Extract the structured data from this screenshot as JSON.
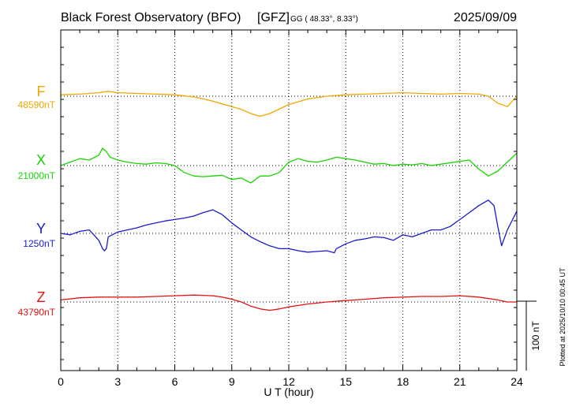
{
  "chart_data": {
    "type": "line",
    "title_station": "Black Forest Observatory (BFO)",
    "title_institute": "[GFZ]",
    "title_coords": "GG ( 48.33°,   8.33°)",
    "date": "2025/09/09",
    "xlabel": "U T (hour)",
    "xlim": [
      0,
      24
    ],
    "x_ticks": [
      "0",
      "3",
      "6",
      "9",
      "12",
      "15",
      "18",
      "21",
      "24"
    ],
    "grid": true,
    "scale_bar_label": "100 nT",
    "scale_bar_nT": 100,
    "plotted_note": "Plotted at 2025/10/10 00:45 UT",
    "series": [
      {
        "name": "F",
        "baseline_label": "48590nT",
        "baseline": 48590,
        "color": "#f0a800",
        "x": [
          0,
          1,
          2,
          2.5,
          3,
          4,
          5,
          6,
          7,
          8,
          9,
          9.5,
          10,
          10.5,
          11,
          12,
          13,
          14,
          15,
          16,
          17,
          18,
          19,
          20,
          21,
          22,
          22.5,
          23,
          23.5,
          24
        ],
        "y": [
          48592,
          48593,
          48595,
          48597,
          48595,
          48594,
          48593,
          48592,
          48589,
          48583,
          48575,
          48571,
          48565,
          48561,
          48565,
          48578,
          48586,
          48590,
          48592,
          48593,
          48594,
          48595,
          48594,
          48593,
          48594,
          48593,
          48590,
          48580,
          48575,
          48590
        ]
      },
      {
        "name": "X",
        "baseline_label": "21000nT",
        "baseline": 21000,
        "color": "#19d400",
        "x": [
          0,
          0.5,
          1,
          1.5,
          2,
          2.2,
          2.4,
          2.6,
          3,
          3.5,
          4,
          4.5,
          5,
          5.5,
          6,
          6.5,
          7,
          7.5,
          8,
          8.5,
          9,
          9.5,
          10,
          10.5,
          11,
          11.5,
          12,
          12.5,
          13,
          13.5,
          14,
          14.5,
          15,
          15.5,
          16,
          16.5,
          17,
          17.5,
          18,
          18.5,
          19,
          19.5,
          20,
          20.5,
          21,
          21.5,
          22,
          22.5,
          23,
          23.5,
          24
        ],
        "y": [
          21000,
          21005,
          21010,
          21008,
          21015,
          21025,
          21020,
          21012,
          21008,
          21005,
          21003,
          21002,
          21004,
          21003,
          21000,
          20990,
          20985,
          20984,
          20985,
          20986,
          20980,
          20982,
          20975,
          20985,
          20985,
          20990,
          21005,
          21010,
          21006,
          21005,
          21008,
          21012,
          21010,
          21008,
          21005,
          21002,
          21003,
          21000,
          21002,
          21001,
          21003,
          21000,
          21002,
          21004,
          21006,
          21008,
          20995,
          20985,
          20992,
          21005,
          21018
        ]
      },
      {
        "name": "Y",
        "baseline_label": "1250nT",
        "baseline": 1250,
        "color": "#1a1ad0",
        "x": [
          0,
          0.5,
          1,
          1.5,
          2,
          2.2,
          2.3,
          2.4,
          2.5,
          3,
          3.5,
          4,
          4.5,
          5,
          5.5,
          6,
          6.5,
          7,
          7.5,
          8,
          8.5,
          9,
          9.5,
          10,
          10.5,
          11,
          11.5,
          12,
          12.5,
          13,
          13.5,
          14,
          14.4,
          14.5,
          15,
          15.5,
          16,
          16.5,
          17,
          17.5,
          18,
          18.5,
          19,
          19.5,
          20,
          20.5,
          21,
          21.5,
          22,
          22.5,
          22.8,
          23,
          23.2,
          23.5,
          24
        ],
        "y": [
          1250,
          1248,
          1253,
          1255,
          1240,
          1228,
          1225,
          1228,
          1245,
          1252,
          1255,
          1258,
          1262,
          1265,
          1268,
          1270,
          1272,
          1275,
          1280,
          1284,
          1277,
          1265,
          1255,
          1245,
          1238,
          1232,
          1228,
          1228,
          1225,
          1223,
          1224,
          1225,
          1222,
          1228,
          1235,
          1240,
          1242,
          1245,
          1244,
          1240,
          1248,
          1245,
          1250,
          1255,
          1255,
          1260,
          1270,
          1280,
          1290,
          1298,
          1290,
          1260,
          1232,
          1255,
          1282
        ]
      },
      {
        "name": "Z",
        "baseline_label": "43790nT",
        "baseline": 43790,
        "color": "#e01414",
        "x": [
          0,
          1,
          2,
          3,
          4,
          5,
          6,
          7,
          8,
          8.5,
          9,
          9.5,
          10,
          10.5,
          11,
          11.5,
          12,
          12.5,
          13,
          14,
          15,
          16,
          17,
          18,
          19,
          20,
          21,
          22,
          23,
          23.5,
          24
        ],
        "y": [
          43793,
          43796,
          43797,
          43797,
          43797,
          43798,
          43799,
          43800,
          43799,
          43797,
          43794,
          43790,
          43784,
          43780,
          43778,
          43780,
          43783,
          43785,
          43787,
          43790,
          43792,
          43794,
          43796,
          43797,
          43798,
          43798,
          43799,
          43797,
          43793,
          43790,
          43790
        ]
      }
    ]
  }
}
